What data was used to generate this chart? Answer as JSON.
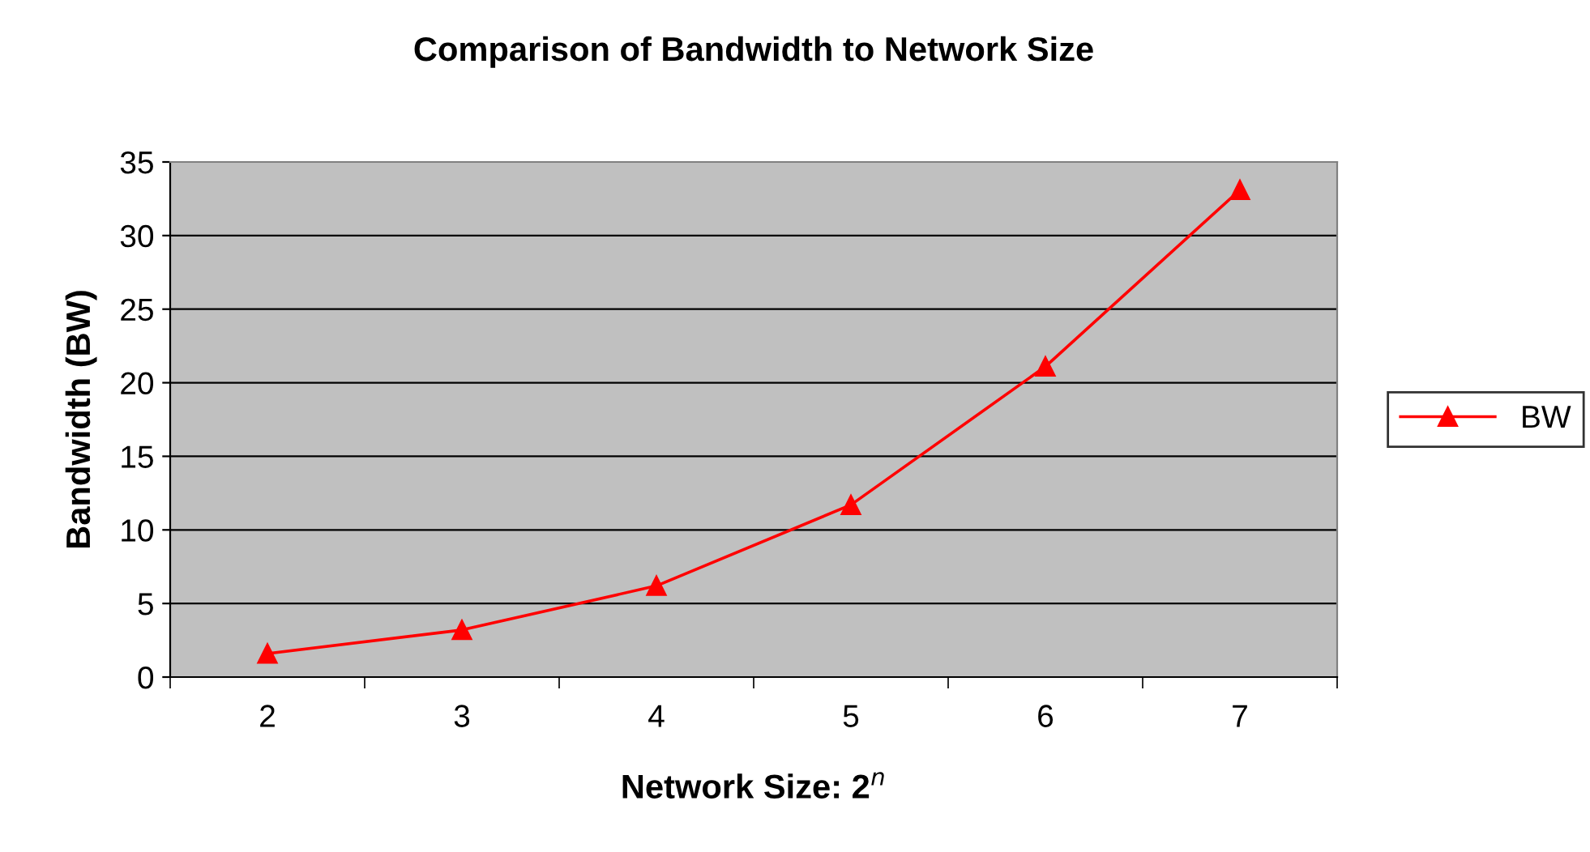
{
  "chart_data": {
    "type": "line",
    "title": "Comparison of Bandwidth to Network Size",
    "xlabel": "Network Size: 2$^{n}$",
    "ylabel": "Bandwidth (BW)",
    "categories": [
      "2",
      "3",
      "4",
      "5",
      "6",
      "7"
    ],
    "series": [
      {
        "name": "BW",
        "color": "#ff0000",
        "values": [
          1.6,
          3.2,
          6.2,
          11.7,
          21.1,
          33.1
        ]
      }
    ],
    "ylim": [
      0,
      35
    ],
    "yticks": [
      0,
      5,
      10,
      15,
      20,
      25,
      30,
      35
    ],
    "grid": "y",
    "legend": "right",
    "marker": "triangle",
    "line_style": "solid"
  }
}
